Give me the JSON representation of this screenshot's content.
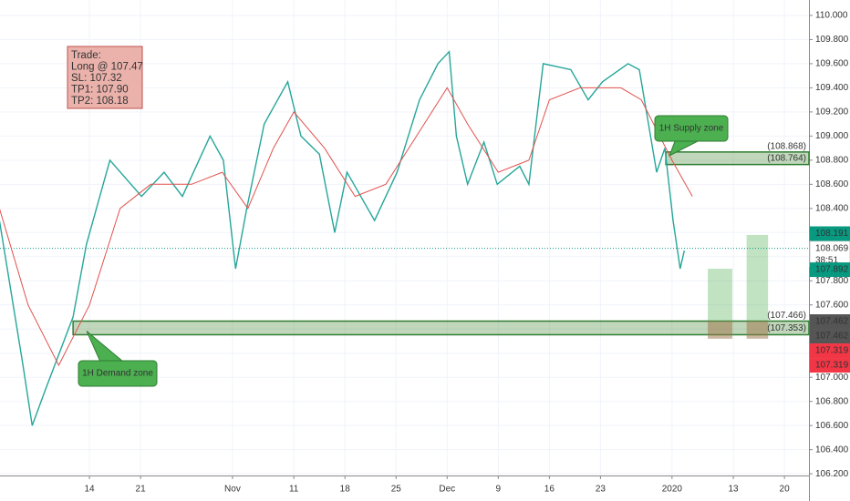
{
  "chart_data": {
    "type": "line",
    "grid": true,
    "series": [
      {
        "color": "#26a69a",
        "x": [
          -8.8,
          -6.5,
          -5.6,
          -4.3,
          -1.6,
          -0.3,
          2.0,
          5.1,
          7.3,
          9.1,
          11.8,
          13.1,
          14.3,
          15.4,
          17.1,
          19.4,
          20.7,
          22.5,
          24.0,
          25.2,
          27.9,
          30.1,
          32.3,
          34.1,
          35.2,
          35.9,
          37.0,
          38.6,
          39.9,
          42.1,
          43.0,
          44.4,
          47.1,
          48.8,
          50.2,
          52.7,
          53.8,
          55.5,
          56.3,
          57.1,
          57.8,
          58.2
        ],
        "values": [
          108.3,
          107.1,
          106.6,
          106.9,
          107.5,
          108.1,
          108.8,
          108.5,
          108.7,
          108.5,
          109.0,
          108.8,
          107.9,
          108.4,
          109.1,
          109.45,
          109.0,
          108.85,
          108.2,
          108.7,
          108.3,
          108.7,
          109.3,
          109.6,
          109.7,
          109.0,
          108.6,
          108.95,
          108.6,
          108.75,
          108.6,
          109.6,
          109.55,
          109.3,
          109.45,
          109.6,
          109.55,
          108.7,
          108.9,
          108.3,
          107.9,
          108.05
        ]
      },
      {
        "color": "#e0524f",
        "x": [
          -8.8,
          -6,
          -3,
          0,
          3,
          6,
          10,
          13,
          15.5,
          18,
          20,
          23,
          26,
          29,
          32,
          35,
          37,
          40,
          43,
          45,
          48,
          52,
          54,
          57,
          59
        ],
        "values": [
          108.4,
          107.6,
          107.1,
          107.6,
          108.4,
          108.6,
          108.6,
          108.7,
          108.4,
          108.9,
          109.2,
          108.9,
          108.5,
          108.6,
          109.0,
          109.4,
          109.1,
          108.7,
          108.8,
          109.3,
          109.4,
          109.4,
          109.3,
          108.8,
          108.5
        ]
      }
    ],
    "xlim": [
      -8.75,
      70.4
    ],
    "xticks": [
      {
        "value": 0,
        "label": "14"
      },
      {
        "value": 5,
        "label": "21"
      },
      {
        "value": 14,
        "label": "Nov"
      },
      {
        "value": 20,
        "label": "11"
      },
      {
        "value": 25,
        "label": "18"
      },
      {
        "value": 30,
        "label": "25"
      },
      {
        "value": 35,
        "label": "Dec"
      },
      {
        "value": 40,
        "label": "9"
      },
      {
        "value": 45,
        "label": "16"
      },
      {
        "value": 50,
        "label": "23"
      },
      {
        "value": 57,
        "label": "2020"
      },
      {
        "value": 63,
        "label": "13"
      },
      {
        "value": 68,
        "label": "20"
      }
    ],
    "ylim": [
      106.186,
      110.128
    ],
    "yticks": [
      {
        "value": 106.2,
        "label": "106.200"
      },
      {
        "value": 106.4,
        "label": "106.400"
      },
      {
        "value": 106.6,
        "label": "106.600"
      },
      {
        "value": 106.8,
        "label": "106.800"
      },
      {
        "value": 107,
        "label": "107.000"
      },
      {
        "value": 107.2,
        "label": "107.200"
      },
      {
        "value": 107.4,
        "label": "107.400"
      },
      {
        "value": 107.6,
        "label": "107.600"
      },
      {
        "value": 107.8,
        "label": "107.800"
      },
      {
        "value": 108,
        "label": "108.000"
      },
      {
        "value": 108.2,
        "label": "108.200"
      },
      {
        "value": 108.4,
        "label": "108.400"
      },
      {
        "value": 108.6,
        "label": "108.600"
      },
      {
        "value": 108.8,
        "label": "108.800"
      },
      {
        "value": 109,
        "label": "109.000"
      },
      {
        "value": 109.2,
        "label": "109.200"
      },
      {
        "value": 109.4,
        "label": "109.400"
      },
      {
        "value": 109.6,
        "label": "109.600"
      },
      {
        "value": 109.8,
        "label": "109.800"
      },
      {
        "value": 110,
        "label": "110.000"
      }
    ],
    "zones": [
      {
        "label": "1H Supply zone",
        "x_start": 56.4,
        "low": 108.764,
        "high": 108.868,
        "low_label": "(108.764)",
        "high_label": "(108.868)"
      },
      {
        "label": "1H Demand zone",
        "x_start": -1.6,
        "low": 107.353,
        "high": 107.466,
        "low_label": "(107.353)",
        "high_label": "(107.466)"
      }
    ],
    "positions": [
      {
        "x_start": 60.5,
        "x_end": 62.9,
        "stop": 107.32,
        "target": 107.9
      },
      {
        "x_start": 64.3,
        "x_end": 66.4,
        "stop": 107.32,
        "target": 108.18
      }
    ],
    "current_price": {
      "value": 108.069,
      "label": "108.069"
    },
    "countdown": "38:51",
    "price_tags": [
      {
        "value": 108.191,
        "label": "108.191",
        "color": "#089981"
      },
      {
        "value": 107.892,
        "label": "107.892",
        "color": "#089981"
      },
      {
        "value": 107.462,
        "label": "107.462",
        "color": "#555555"
      },
      {
        "value": 107.462,
        "label": "107.462",
        "color": "#555555"
      },
      {
        "value": 107.319,
        "label": "107.319",
        "color": "#f23645"
      },
      {
        "value": 107.319,
        "label": "107.319",
        "color": "#f23645"
      }
    ],
    "trade_note": [
      "Trade:",
      "Long @ 107.47",
      "SL: 107.32",
      "TP1: 107.90",
      "TP2: 108.18"
    ]
  }
}
